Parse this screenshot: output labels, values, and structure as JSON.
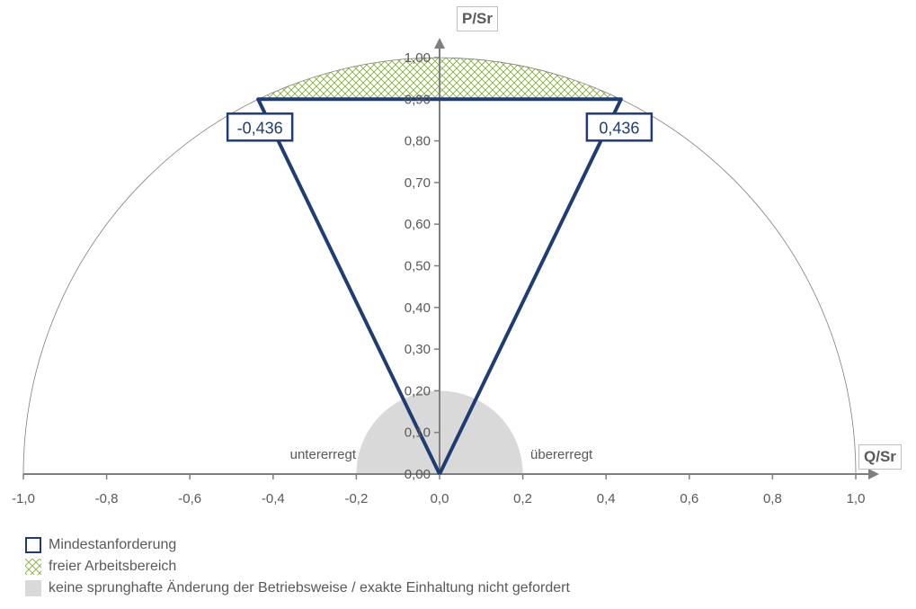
{
  "chart_data": {
    "type": "line",
    "x_axis": {
      "title": "Q/Sr",
      "min": -1.0,
      "max": 1.0,
      "ticks": [
        "-1,0",
        "-0,8",
        "-0,6",
        "-0,4",
        "-0,2",
        "0,0",
        "0,2",
        "0,4",
        "0,6",
        "0,8",
        "1,0"
      ],
      "tick_values": [
        -1.0,
        -0.8,
        -0.6,
        -0.4,
        -0.2,
        0.0,
        0.2,
        0.4,
        0.6,
        0.8,
        1.0
      ]
    },
    "y_axis": {
      "title": "P/Sr",
      "min": 0.0,
      "max": 1.0,
      "ticks": [
        "0,00",
        "0,10",
        "0,20",
        "0,30",
        "0,40",
        "0,50",
        "0,60",
        "0,70",
        "0,80",
        "0,90",
        "1,00"
      ],
      "tick_values": [
        0.0,
        0.1,
        0.2,
        0.3,
        0.4,
        0.5,
        0.6,
        0.7,
        0.8,
        0.9,
        1.0
      ]
    },
    "series": [
      {
        "name": "Mindestanforderung",
        "kind": "polygon",
        "color": "#1f3d73",
        "points": [
          [
            0.0,
            0.0
          ],
          [
            -0.436,
            0.9
          ],
          [
            0.436,
            0.9
          ],
          [
            0.0,
            0.0
          ]
        ]
      },
      {
        "name": "freier Arbeitsbereich",
        "kind": "hatched-area",
        "color": "#92b450",
        "bounds": {
          "p_min": 0.9,
          "circle_radius": 1.0
        }
      },
      {
        "name": "keine sprunghafte Änderung der Betriebsweise / exakte Einhaltung nicht gefordert",
        "kind": "semicircle",
        "color": "#d9d9d9",
        "radius": 0.2
      }
    ],
    "reference_circle_radius": 1.0,
    "annotations": [
      {
        "text": "-0,436",
        "q": -0.436,
        "p": 0.9
      },
      {
        "text": "0,436",
        "q": 0.436,
        "p": 0.9
      },
      {
        "text": "untererregt",
        "side": "left"
      },
      {
        "text": "übererregt",
        "side": "right"
      }
    ],
    "legend_position": "bottom-left",
    "grid": false
  },
  "legend": [
    {
      "label": "Mindestanforderung",
      "swatch": "outline"
    },
    {
      "label": "freier Arbeitsbereich",
      "swatch": "hatch"
    },
    {
      "label": "keine sprunghafte Änderung der Betriebsweise / exakte Einhaltung nicht gefordert",
      "swatch": "grey"
    }
  ],
  "colors": {
    "triangle": "#1f3d73",
    "hatch": "#92b450",
    "grey_area": "#d9d9d9",
    "axis": "#7f7f7f",
    "text": "#595959"
  }
}
